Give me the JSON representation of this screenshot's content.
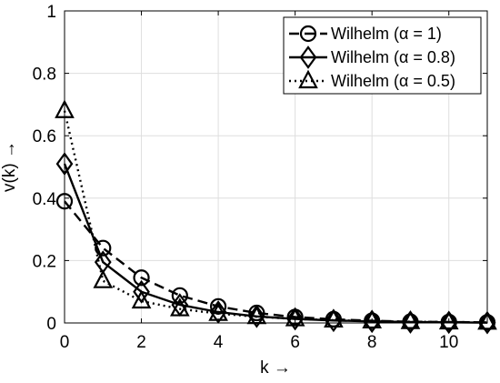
{
  "chart_data": {
    "type": "line",
    "xlabel": "k →",
    "ylabel": "v(k) →",
    "xlim": [
      0,
      11
    ],
    "ylim": [
      0,
      1
    ],
    "xticks": [
      0,
      2,
      4,
      6,
      8,
      10
    ],
    "yticks": [
      0,
      0.2,
      0.4,
      0.6,
      0.8,
      1
    ],
    "xtick_labels": [
      "0",
      "2",
      "4",
      "6",
      "8",
      "10"
    ],
    "ytick_labels": [
      "0",
      "0.2",
      "0.4",
      "0.6",
      "0.8",
      "1"
    ],
    "grid": true,
    "legend_position": "top-right",
    "x": [
      0,
      1,
      2,
      3,
      4,
      5,
      6,
      7,
      8,
      9,
      10,
      11
    ],
    "series": [
      {
        "name": "Wilhelm (α = 1)",
        "line_style": "dashed",
        "marker": "circle",
        "values": [
          0.39,
          0.24,
          0.145,
          0.088,
          0.053,
          0.032,
          0.019,
          0.012,
          0.007,
          0.004,
          0.003,
          0.002
        ]
      },
      {
        "name": "Wilhelm (α = 0.8)",
        "line_style": "solid",
        "marker": "diamond",
        "values": [
          0.51,
          0.195,
          0.1,
          0.058,
          0.035,
          0.021,
          0.013,
          0.008,
          0.005,
          0.003,
          0.002,
          0.001
        ]
      },
      {
        "name": "Wilhelm (α = 0.5)",
        "line_style": "dotted",
        "marker": "triangle",
        "values": [
          0.68,
          0.135,
          0.07,
          0.045,
          0.03,
          0.02,
          0.013,
          0.009,
          0.006,
          0.004,
          0.003,
          0.002
        ]
      }
    ],
    "line_color": "#000000"
  }
}
